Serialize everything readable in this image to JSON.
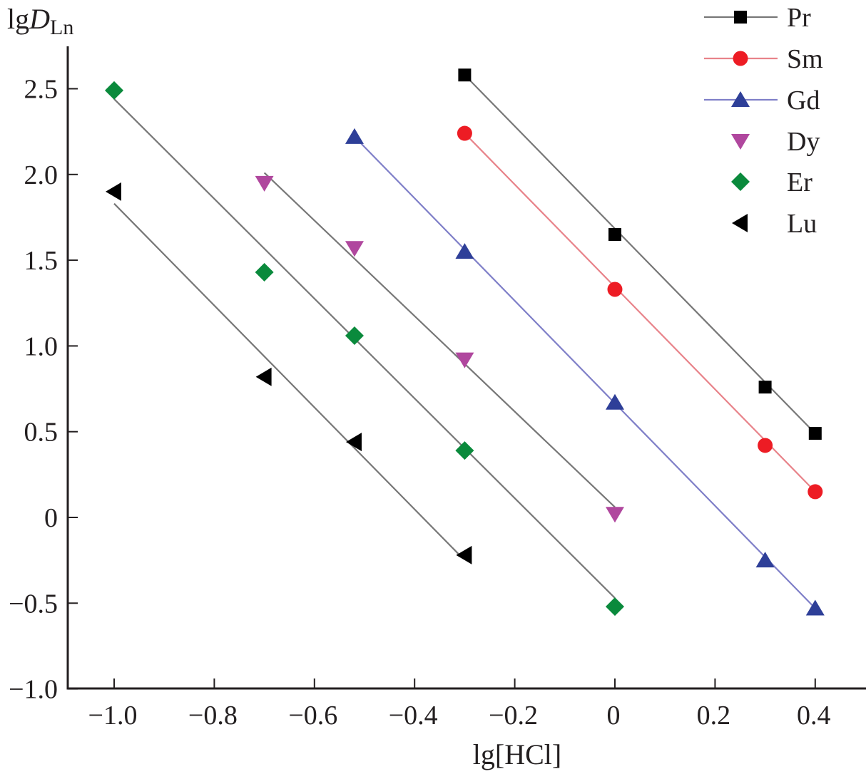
{
  "chart_data": {
    "type": "scatter",
    "title": "",
    "xlabel": "lg[HCl]",
    "ylabel": {
      "prefix": "lg",
      "main": "D",
      "subscript": "Ln"
    },
    "xlim": [
      -1.1,
      0.5
    ],
    "ylim": [
      -1.0,
      2.75
    ],
    "x_ticks": [
      -1.0,
      -0.8,
      -0.6,
      -0.4,
      -0.2,
      0,
      0.2,
      0.4
    ],
    "x_tick_labels": [
      "−1.0",
      "−0.8",
      "−0.6",
      "−0.4",
      "−0.2",
      "0",
      "0.2",
      "0.4"
    ],
    "y_ticks": [
      2.5,
      2.0,
      1.5,
      1.0,
      0.5,
      0,
      -0.5,
      -1.0
    ],
    "y_tick_labels": [
      "2.5",
      "2.0",
      "1.5",
      "1.0",
      "0.5",
      "0",
      "−0.5",
      "−1.0"
    ],
    "grid": false,
    "legend_position": "top-right",
    "series": [
      {
        "name": "Pr",
        "marker": "square",
        "color": "#000000",
        "line_color": "#777777",
        "x": [
          -0.3,
          0.0,
          0.3,
          0.4
        ],
        "y": [
          2.58,
          1.65,
          0.76,
          0.49
        ],
        "fit_line": {
          "x": [
            -0.3,
            0.4
          ],
          "y": [
            2.58,
            0.49
          ]
        },
        "legend_line": true
      },
      {
        "name": "Sm",
        "marker": "circle",
        "color": "#ed1c24",
        "line_color": "#e8838a",
        "x": [
          -0.3,
          0.0,
          0.3,
          0.4
        ],
        "y": [
          2.24,
          1.33,
          0.42,
          0.15
        ],
        "fit_line": {
          "x": [
            -0.3,
            0.4
          ],
          "y": [
            2.24,
            0.15
          ]
        },
        "legend_line": true
      },
      {
        "name": "Gd",
        "marker": "triangle-up",
        "color": "#2e3f98",
        "line_color": "#7f7fc8",
        "x": [
          -0.52,
          -0.3,
          0.0,
          0.3,
          0.4
        ],
        "y": [
          2.22,
          1.55,
          0.67,
          -0.25,
          -0.53
        ],
        "fit_line": {
          "x": [
            -0.52,
            0.4
          ],
          "y": [
            2.22,
            -0.53
          ]
        },
        "legend_line": true
      },
      {
        "name": "Dy",
        "marker": "triangle-down",
        "color": "#b0479e",
        "line_color": "#777777",
        "x": [
          -0.7,
          -0.52,
          -0.3,
          0.0
        ],
        "y": [
          1.95,
          1.57,
          0.92,
          0.02
        ],
        "fit_line": {
          "x": [
            -0.7,
            0.0
          ],
          "y": [
            2.01,
            0.06
          ]
        },
        "legend_line": false
      },
      {
        "name": "Er",
        "marker": "diamond",
        "color": "#0a8a3c",
        "line_color": "#777777",
        "x": [
          -1.0,
          -0.7,
          -0.52,
          -0.3,
          0.0
        ],
        "y": [
          2.49,
          1.43,
          1.06,
          0.39,
          -0.52
        ],
        "fit_line": {
          "x": [
            -1.0,
            0.0
          ],
          "y": [
            2.44,
            -0.47
          ]
        },
        "legend_line": false
      },
      {
        "name": "Lu",
        "marker": "triangle-left",
        "color": "#000000",
        "line_color": "#777777",
        "x": [
          -1.0,
          -0.7,
          -0.52,
          -0.3
        ],
        "y": [
          1.9,
          0.82,
          0.44,
          -0.22
        ],
        "fit_line": {
          "x": [
            -1.0,
            -0.31
          ],
          "y": [
            1.83,
            -0.22
          ]
        },
        "legend_line": false
      }
    ]
  }
}
